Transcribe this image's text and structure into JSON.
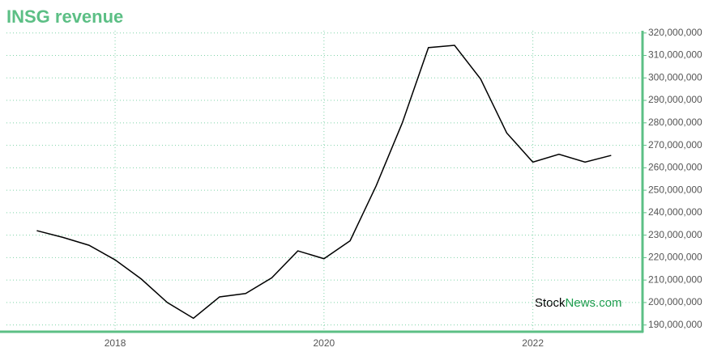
{
  "chart_data": {
    "type": "line",
    "title": "INSG revenue",
    "watermark": {
      "prefix": "Stock",
      "suffix": "News.com"
    },
    "x": [
      2017.25,
      2017.5,
      2017.75,
      2018,
      2018.25,
      2018.5,
      2018.75,
      2019,
      2019.25,
      2019.5,
      2019.75,
      2020,
      2020.25,
      2020.5,
      2020.75,
      2021,
      2021.25,
      2021.5,
      2021.75,
      2022,
      2022.25,
      2022.5,
      2022.75
    ],
    "series": [
      {
        "name": "INSG revenue",
        "color": "#000000",
        "values": [
          232000000,
          229000000,
          225500000,
          219000000,
          210500000,
          200000000,
          193000000,
          202500000,
          204000000,
          211000000,
          223000000,
          219500000,
          227500000,
          252000000,
          280000000,
          313500000,
          314500000,
          299500000,
          275500000,
          262500000,
          266000000,
          262500000,
          265500000
        ]
      }
    ],
    "xlim": [
      2016.96,
      2023.05
    ],
    "xticks": [
      2018,
      2020,
      2022
    ],
    "ylim": [
      187000000,
      321000000
    ],
    "yticks": [
      {
        "value": 190000000,
        "label": "190,000,000"
      },
      {
        "value": 200000000,
        "label": "200,000,000"
      },
      {
        "value": 210000000,
        "label": "210,000,000"
      },
      {
        "value": 220000000,
        "label": "220,000,000"
      },
      {
        "value": 230000000,
        "label": "230,000,000"
      },
      {
        "value": 240000000,
        "label": "240,000,000"
      },
      {
        "value": 250000000,
        "label": "250,000,000"
      },
      {
        "value": 260000000,
        "label": "260,000,000"
      },
      {
        "value": 270000000,
        "label": "270,000,000"
      },
      {
        "value": 280000000,
        "label": "280,000,000"
      },
      {
        "value": 290000000,
        "label": "290,000,000"
      },
      {
        "value": 300000000,
        "label": "300,000,000"
      },
      {
        "value": 310000000,
        "label": "310,000,000"
      },
      {
        "value": 320000000,
        "label": "320,000,000"
      }
    ],
    "grid": true,
    "axis_color": "#5cbf85"
  }
}
